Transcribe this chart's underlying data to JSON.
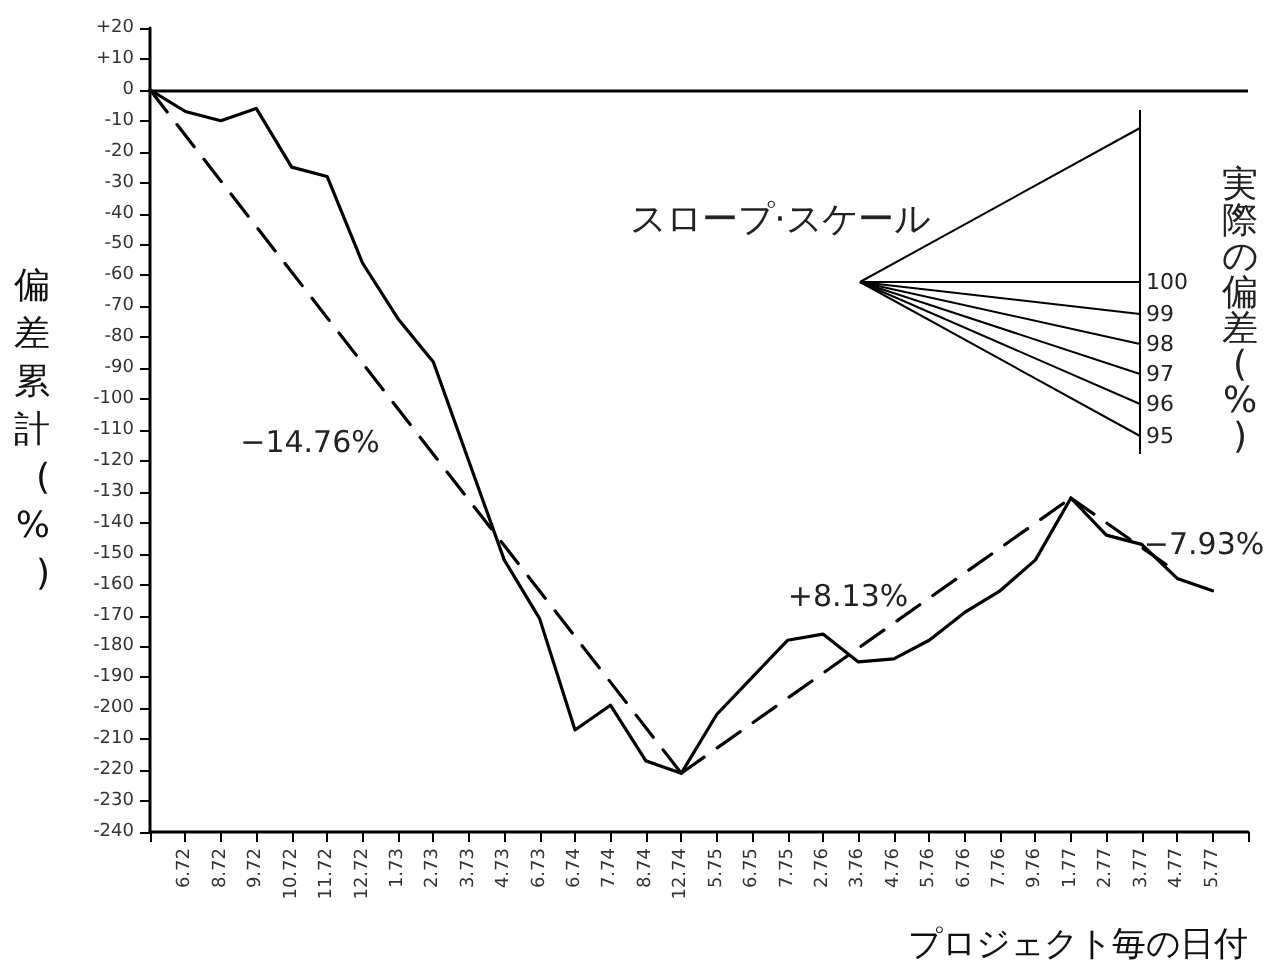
{
  "chart_data": {
    "type": "line",
    "xlabel": "プロジェクト毎の日付",
    "ylabel": "偏差累計(%)",
    "categories": [
      null,
      "6.72",
      "8.72",
      "9.72",
      "10.72",
      "11.72",
      "12.72",
      "1.73",
      "2.73",
      "3.73",
      "4.73",
      "6.73",
      "6.74",
      "7.74",
      "8.74",
      "12.74",
      "5.75",
      "6.75",
      "7.75",
      "2.76",
      "3.76",
      "4.76",
      "5.76",
      "6.76",
      "7.76",
      "9.76",
      "1.77",
      "2.77",
      "3.77",
      "4.77",
      "5.77",
      null
    ],
    "series": [
      {
        "color": "#000000",
        "line_style": "solid",
        "values": [
          0,
          -7,
          -10,
          -6,
          -25,
          -28,
          -56,
          -74,
          -88,
          -120,
          -152,
          -171,
          -207,
          -199,
          -217,
          -221,
          -202,
          -190,
          -178,
          -176,
          -185,
          -184,
          -178,
          -169,
          -162,
          -152,
          -132,
          -144,
          -147,
          -158,
          -162,
          null
        ]
      },
      {
        "color": "#000000",
        "line_style": "dashed",
        "values": [
          0,
          null,
          null,
          null,
          null,
          null,
          null,
          null,
          null,
          null,
          null,
          null,
          null,
          null,
          null,
          -221,
          null,
          null,
          null,
          null,
          null,
          null,
          null,
          null,
          null,
          null,
          null,
          null,
          null,
          null,
          null,
          null
        ]
      },
      {
        "color": "#000000",
        "line_style": "dashed",
        "values": [
          null,
          null,
          null,
          null,
          null,
          null,
          null,
          null,
          null,
          null,
          null,
          null,
          null,
          null,
          null,
          -221,
          null,
          null,
          null,
          null,
          null,
          null,
          null,
          null,
          null,
          null,
          -132,
          null,
          null,
          null,
          null,
          null
        ]
      },
      {
        "color": "#000000",
        "line_style": "dashed",
        "values": [
          null,
          null,
          null,
          null,
          null,
          null,
          null,
          null,
          null,
          null,
          null,
          null,
          null,
          null,
          null,
          null,
          null,
          null,
          null,
          null,
          null,
          null,
          null,
          null,
          null,
          null,
          -132,
          null,
          null,
          -156,
          null,
          null
        ]
      }
    ],
    "ylim": [
      -240,
      20
    ],
    "yticks": [
      {
        "value": 20,
        "label": "+20"
      },
      {
        "value": 10,
        "label": "+10"
      },
      0,
      -10,
      -20,
      -30,
      -40,
      -50,
      -60,
      -70,
      -80,
      -90,
      -100,
      -110,
      -120,
      -130,
      -140,
      -150,
      -160,
      -170,
      -180,
      -190,
      -200,
      -210,
      -220,
      -230,
      -240
    ],
    "ref_lines": [
      {
        "axis": "y",
        "value": 0,
        "color": "#000000",
        "line_style": "solid"
      }
    ],
    "annotations": [
      "−14.76%",
      "+8.13%",
      "−7.93%",
      "スロープ·スケール",
      "実際の偏差(%)",
      "100",
      "99",
      "98",
      "97",
      "96",
      "95"
    ],
    "marker": "none",
    "grid": false
  }
}
